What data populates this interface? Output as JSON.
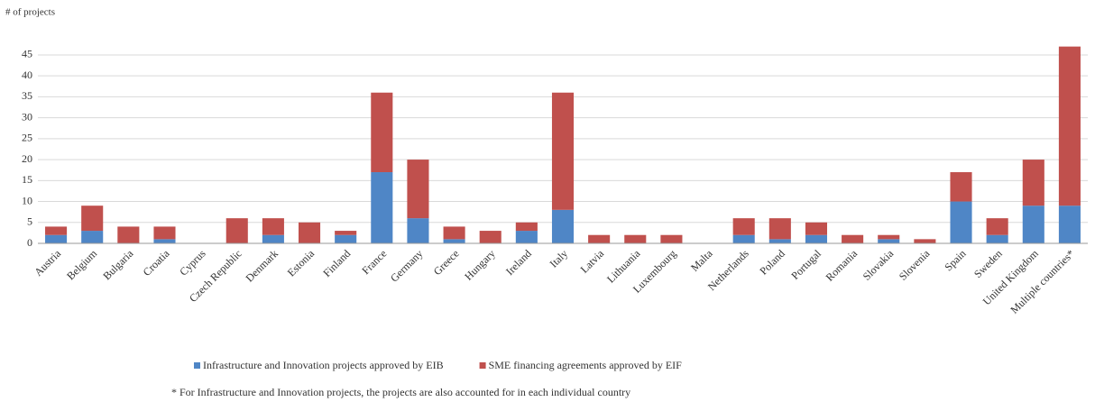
{
  "chart_data": {
    "type": "stacked-bar",
    "y_label": "# of projects",
    "categories": [
      "Austria",
      "Belgium",
      "Bulgaria",
      "Croatia",
      "Cyprus",
      "Czech Republic",
      "Denmark",
      "Estonia",
      "Finland",
      "France",
      "Germany",
      "Greece",
      "Hungary",
      "Ireland",
      "Italy",
      "Latvia",
      "Lithuania",
      "Luxembourg",
      "Malta",
      "Netherlands",
      "Poland",
      "Portugal",
      "Romania",
      "Slovakia",
      "Slovenia",
      "Spain",
      "Sweden",
      "United Kingdom",
      "Multiple countries*"
    ],
    "series": [
      {
        "name": "Infrastructure and Innovation projects approved by EIB",
        "color": "#4f86c6",
        "values": [
          2,
          3,
          0,
          1,
          0,
          0,
          2,
          0,
          2,
          17,
          6,
          1,
          0,
          3,
          8,
          0,
          0,
          0,
          0,
          2,
          1,
          2,
          0,
          1,
          0,
          10,
          2,
          9,
          9
        ]
      },
      {
        "name": "SME financing agreements approved by EIF",
        "color": "#c0504d",
        "values": [
          2,
          6,
          4,
          3,
          0,
          6,
          4,
          5,
          1,
          19,
          14,
          3,
          3,
          2,
          28,
          2,
          2,
          2,
          0,
          4,
          5,
          3,
          2,
          1,
          1,
          7,
          4,
          11,
          38
        ]
      }
    ],
    "ylim": [
      0,
      48
    ],
    "yticks": [
      0,
      5,
      10,
      15,
      20,
      25,
      30,
      35,
      40,
      45
    ],
    "grid": true,
    "footnote": "* For Infrastructure and Innovation projects, the projects are also accounted for in each individual country"
  }
}
